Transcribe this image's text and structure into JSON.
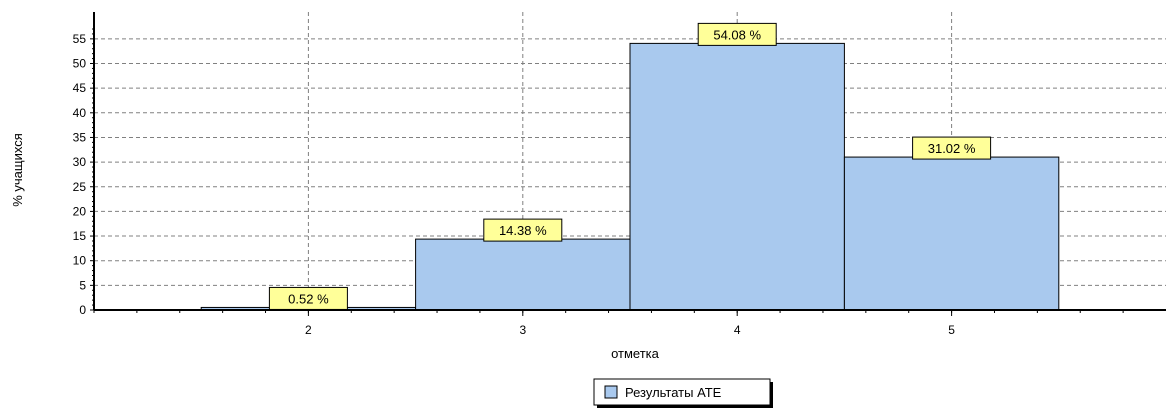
{
  "chart_data": {
    "type": "bar",
    "categories": [
      "2",
      "3",
      "4",
      "5"
    ],
    "series": [
      {
        "name": "Результаты АТЕ",
        "values": [
          0.52,
          14.38,
          54.08,
          31.02
        ]
      }
    ],
    "data_labels": [
      "0.52 %",
      "14.38 %",
      "54.08 %",
      "31.02 %"
    ],
    "xlabel": "отметка",
    "ylabel": "% учащихся",
    "y_ticks": [
      0,
      5,
      10,
      15,
      20,
      25,
      30,
      35,
      40,
      45,
      50,
      55
    ],
    "x_range": [
      1,
      6
    ],
    "ylim": [
      0,
      60
    ],
    "grid": true,
    "legend_position": "bottom-center",
    "colors": {
      "bar_fill": "#a9c9ee",
      "bar_stroke": "#000000",
      "label_bg": "#ffff99",
      "grid": "#808080"
    }
  }
}
